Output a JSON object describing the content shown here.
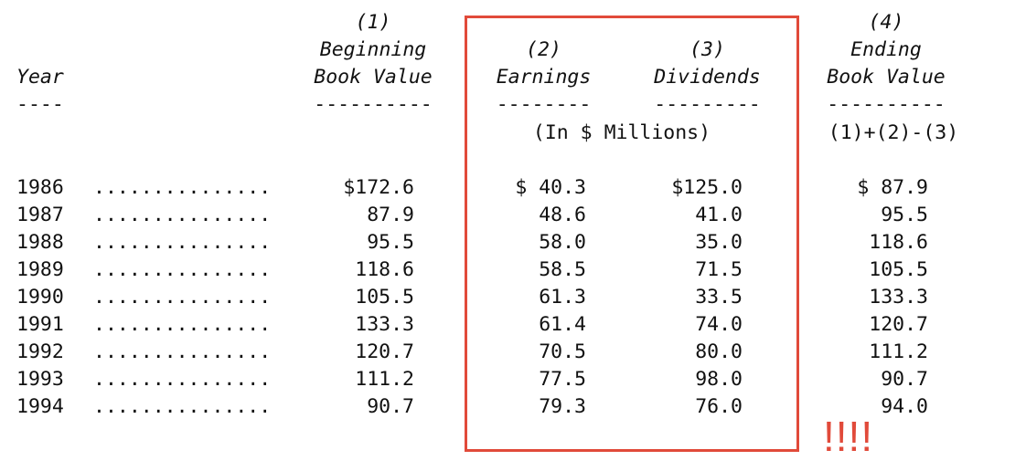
{
  "header": {
    "year_label": "Year",
    "year_rule": "----",
    "col1": {
      "number": "(1)",
      "line1": "Beginning",
      "line2": "Book Value",
      "rule": "----------"
    },
    "col2": {
      "number": "(2)",
      "line1": "Earnings",
      "rule": "--------"
    },
    "col3": {
      "number": "(3)",
      "line1": "Dividends",
      "rule": "---------"
    },
    "col4": {
      "number": "(4)",
      "line1": "Ending",
      "line2": "Book Value",
      "rule": "----------",
      "formula": "(1)+(2)-(3)"
    },
    "units": "(In $ Millions)"
  },
  "rows": [
    {
      "year": "1986",
      "leader": "...............",
      "beginning": "$172.6",
      "earnings": "$ 40.3",
      "dividends": "$125.0",
      "ending": "$ 87.9"
    },
    {
      "year": "1987",
      "leader": "...............",
      "beginning": "87.9",
      "earnings": "48.6",
      "dividends": "41.0",
      "ending": "95.5"
    },
    {
      "year": "1988",
      "leader": "...............",
      "beginning": "95.5",
      "earnings": "58.0",
      "dividends": "35.0",
      "ending": "118.6"
    },
    {
      "year": "1989",
      "leader": "...............",
      "beginning": "118.6",
      "earnings": "58.5",
      "dividends": "71.5",
      "ending": "105.5"
    },
    {
      "year": "1990",
      "leader": "...............",
      "beginning": "105.5",
      "earnings": "61.3",
      "dividends": "33.5",
      "ending": "133.3"
    },
    {
      "year": "1991",
      "leader": "...............",
      "beginning": "133.3",
      "earnings": "61.4",
      "dividends": "74.0",
      "ending": "120.7"
    },
    {
      "year": "1992",
      "leader": "...............",
      "beginning": "120.7",
      "earnings": "70.5",
      "dividends": "80.0",
      "ending": "111.2"
    },
    {
      "year": "1993",
      "leader": "...............",
      "beginning": "111.2",
      "earnings": "77.5",
      "dividends": "98.0",
      "ending": "90.7"
    },
    {
      "year": "1994",
      "leader": "...............",
      "beginning": "90.7",
      "earnings": "79.3",
      "dividends": "76.0",
      "ending": "94.0"
    }
  ],
  "annotation": {
    "mark": "!!!!",
    "color": "#e14a3a"
  }
}
